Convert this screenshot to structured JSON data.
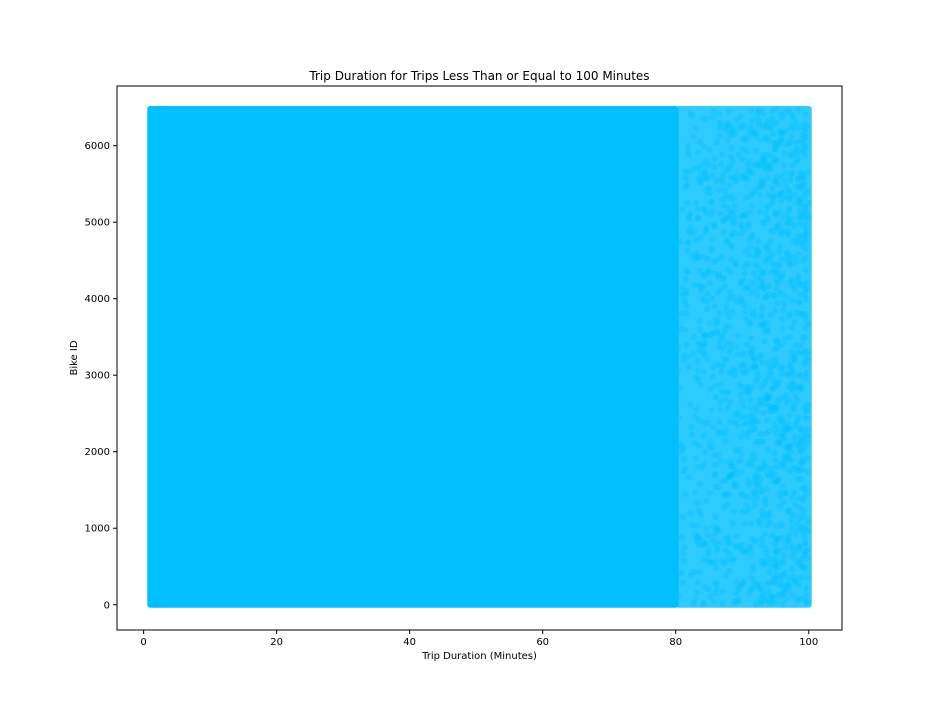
{
  "chart_data": {
    "type": "scatter",
    "title": "Trip Duration for Trips Less Than or Equal to 100 Minutes",
    "xlabel": "Trip Duration (Minutes)",
    "ylabel": "Bike ID",
    "xlim": [
      -4,
      105
    ],
    "ylim": [
      -330,
      6780
    ],
    "xticks": [
      0,
      20,
      40,
      60,
      80,
      100
    ],
    "yticks": [
      0,
      1000,
      2000,
      3000,
      4000,
      5000,
      6000
    ],
    "grid": false,
    "legend": "none",
    "point_color": "#00bfff",
    "point_alpha": 0.3,
    "series": [
      {
        "x_range": [
          1,
          100
        ],
        "y_range": [
          0,
          6480
        ],
        "dense_region": {
          "x": [
            1,
            80
          ],
          "y": [
            0,
            6480
          ]
        },
        "sparser_region": {
          "x": [
            80,
            100
          ],
          "y": [
            0,
            6480
          ]
        }
      }
    ]
  }
}
